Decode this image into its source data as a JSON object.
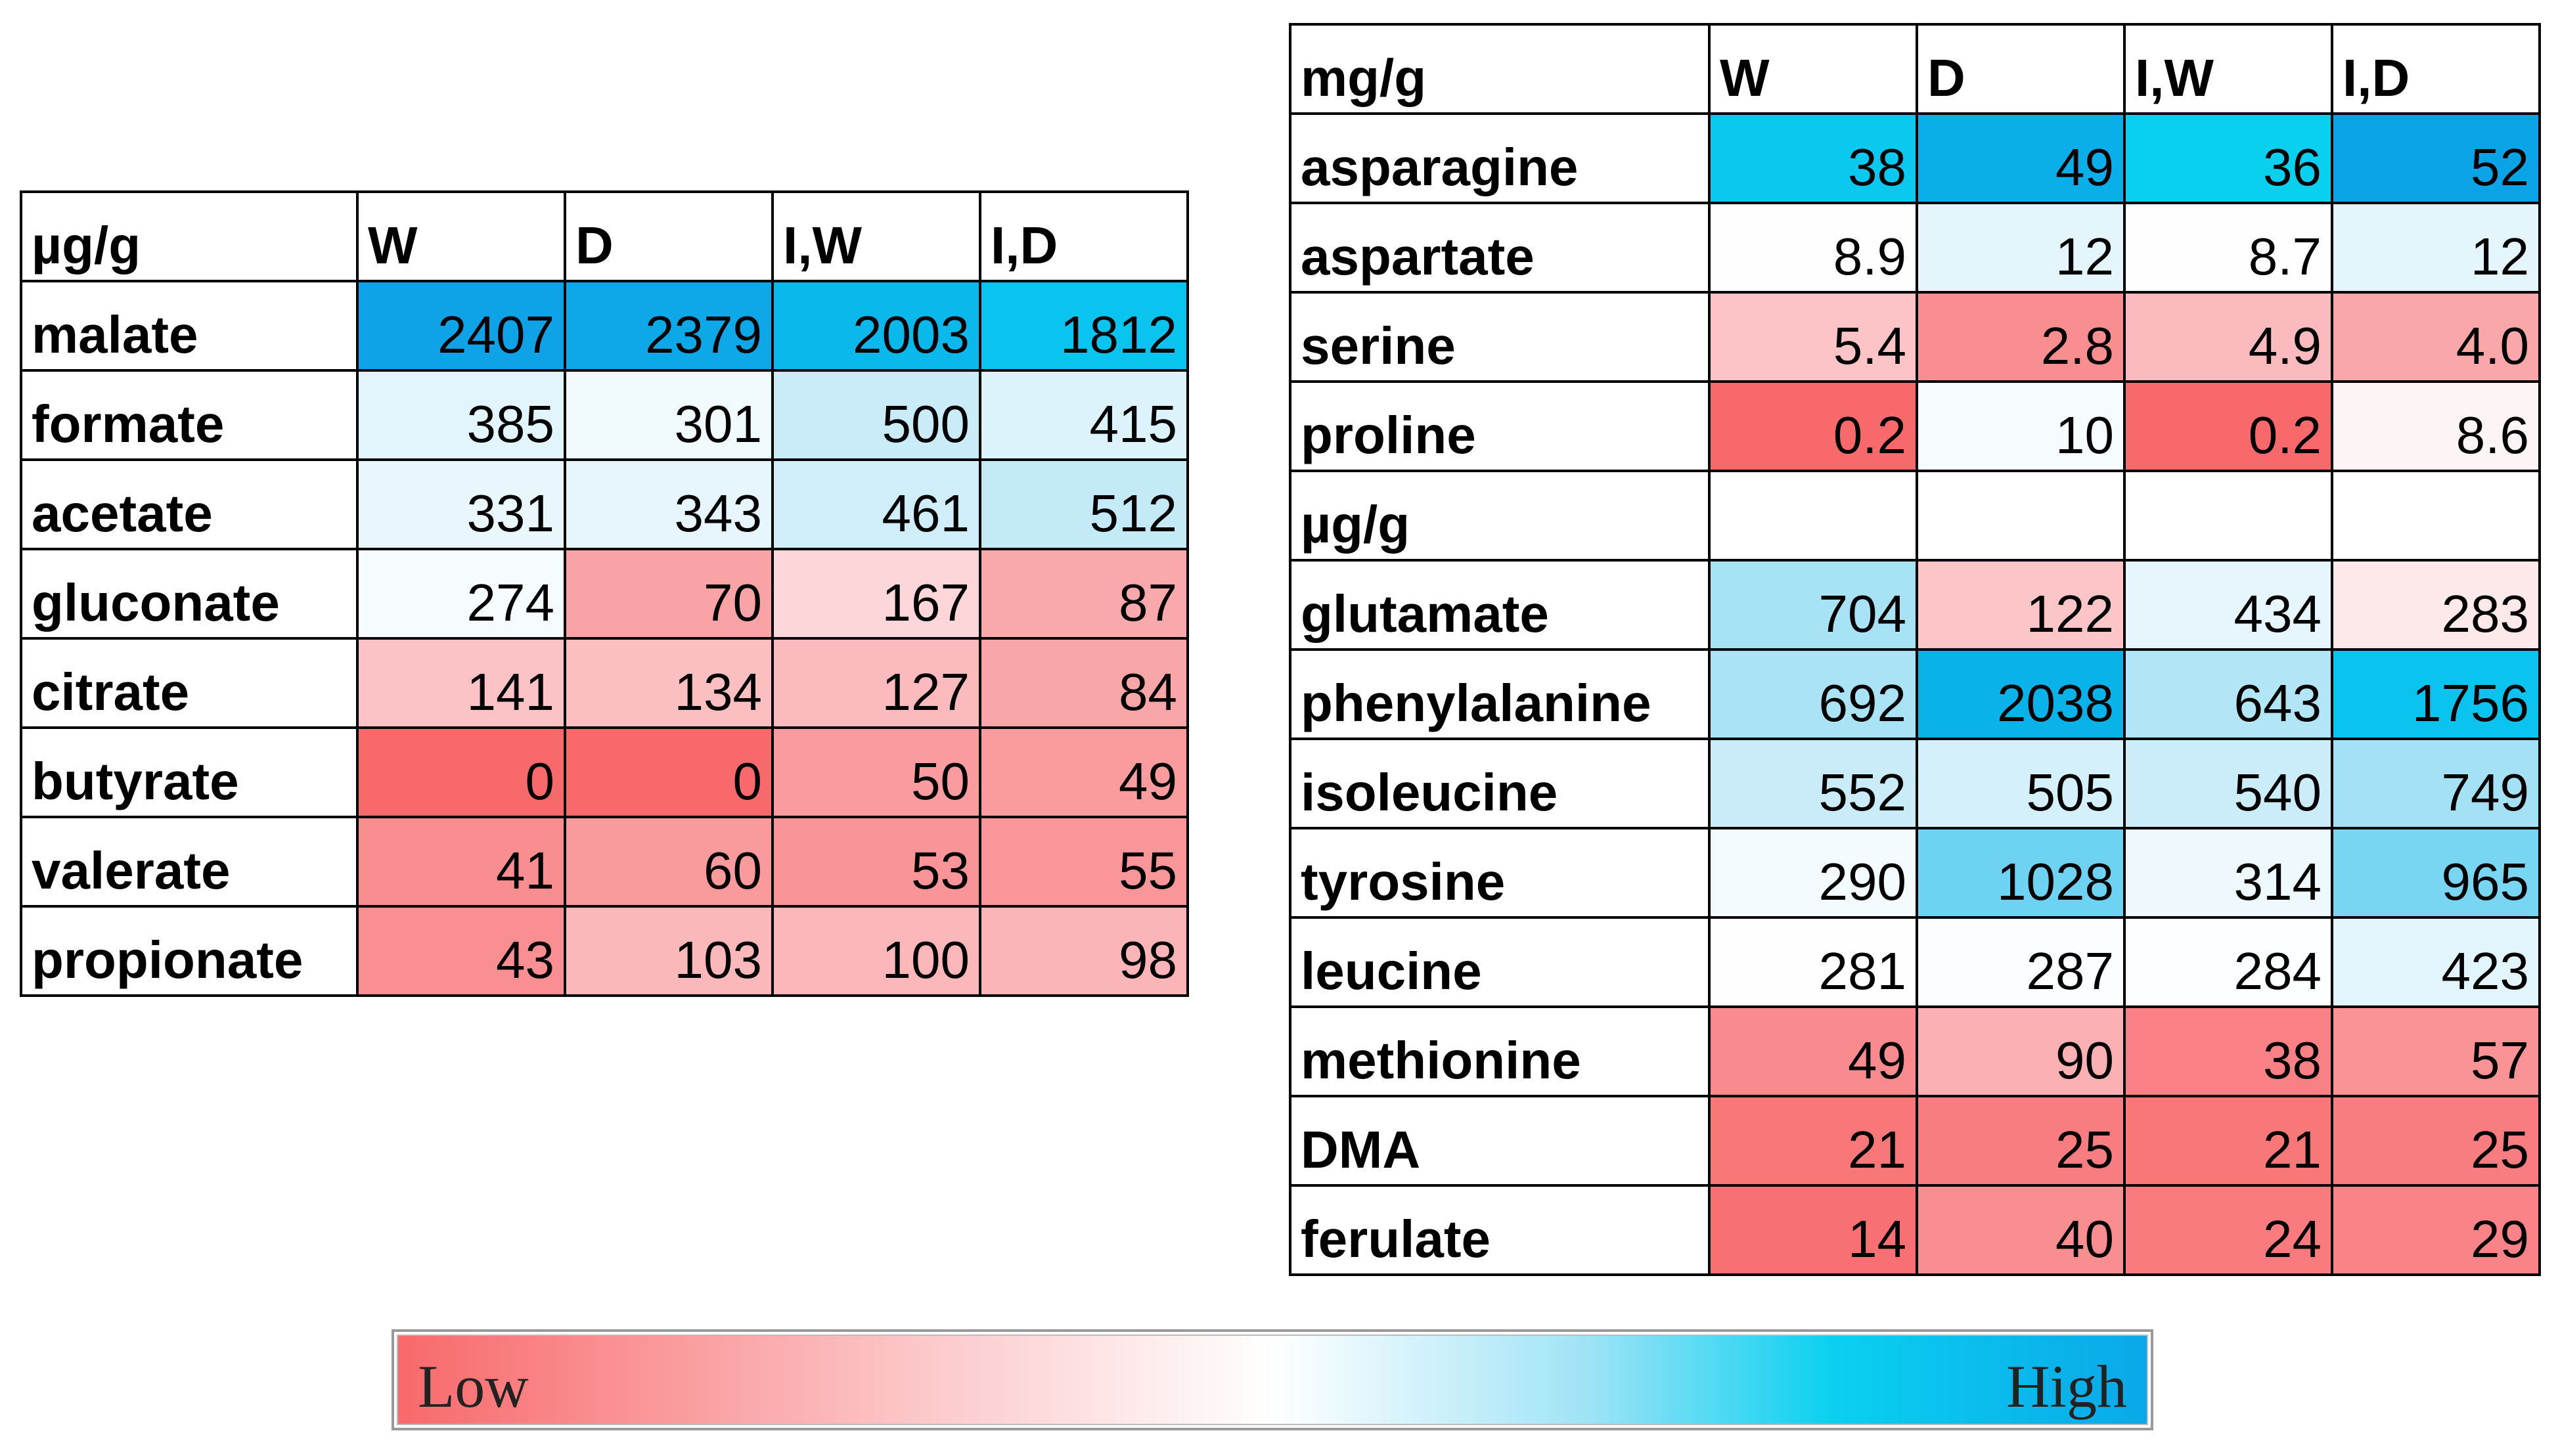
{
  "left_table": {
    "header": [
      "µg/g",
      "W",
      "D",
      "I,W",
      "I,D"
    ],
    "rows": [
      {
        "label": "malate",
        "values": [
          "2407",
          "2379",
          "2003",
          "1812"
        ],
        "colors": [
          "#0ea2e6",
          "#0ca8e8",
          "#0ab8ec",
          "#08c4ef"
        ]
      },
      {
        "label": "formate",
        "values": [
          "385",
          "301",
          "500",
          "415"
        ],
        "colors": [
          "#e3f5fc",
          "#f1fafd",
          "#c9ecf8",
          "#dcf3fb"
        ]
      },
      {
        "label": "acetate",
        "values": [
          "331",
          "343",
          "461",
          "512"
        ],
        "colors": [
          "#e9f7fd",
          "#e6f6fc",
          "#cfeefa",
          "#c4eaf8"
        ]
      },
      {
        "label": "gluconate",
        "values": [
          "274",
          "70",
          "167",
          "87"
        ],
        "colors": [
          "#f5fbfe",
          "#f9a3a6",
          "#fcd6d8",
          "#f9a9ab"
        ]
      },
      {
        "label": "citrate",
        "values": [
          "141",
          "134",
          "127",
          "84"
        ],
        "colors": [
          "#fbc3c5",
          "#fbbfc1",
          "#fbbabd",
          "#f9a6a8"
        ]
      },
      {
        "label": "butyrate",
        "values": [
          "0",
          "0",
          "50",
          "49"
        ],
        "colors": [
          "#f8696b",
          "#f8696b",
          "#fa9c9f",
          "#fa9b9e"
        ]
      },
      {
        "label": "valerate",
        "values": [
          "41",
          "60",
          "53",
          "55"
        ],
        "colors": [
          "#f98e91",
          "#f99a9d",
          "#f99598",
          "#f99699"
        ]
      },
      {
        "label": "propionate",
        "values": [
          "43",
          "103",
          "100",
          "98"
        ],
        "colors": [
          "#f98f92",
          "#fbb8bb",
          "#fbb7ba",
          "#fbb5b8"
        ]
      }
    ]
  },
  "right_table": {
    "header": [
      "mg/g",
      "W",
      "D",
      "I,W",
      "I,D"
    ],
    "rows": [
      {
        "label": "asparagine",
        "values": [
          "38",
          "49",
          "36",
          "52"
        ],
        "colors": [
          "#0ac8ee",
          "#0aaee8",
          "#0ad0f0",
          "#0aa3e6"
        ]
      },
      {
        "label": "aspartate",
        "values": [
          "8.9",
          "12",
          "8.7",
          "12"
        ],
        "colors": [
          "#fefefe",
          "#e4f6fc",
          "#fefefe",
          "#e4f6fc"
        ]
      },
      {
        "label": "serine",
        "values": [
          "5.4",
          "2.8",
          "4.9",
          "4.0"
        ],
        "colors": [
          "#fcc4c6",
          "#f98e91",
          "#fbbbbe",
          "#faa7aa"
        ]
      },
      {
        "label": "proline",
        "values": [
          "0.2",
          "10",
          "0.2",
          "8.6"
        ],
        "colors": [
          "#f8696b",
          "#f5fbfe",
          "#f8696b",
          "#fdf5f5"
        ]
      }
    ],
    "subheader": "µg/g",
    "rows2": [
      {
        "label": "glutamate",
        "values": [
          "704",
          "122",
          "434",
          "283"
        ],
        "colors": [
          "#a8e2f5",
          "#fcc5c7",
          "#e6f6fc",
          "#fde8ea"
        ]
      },
      {
        "label": "phenylalanine",
        "values": [
          "692",
          "2038",
          "643",
          "1756"
        ],
        "colors": [
          "#aae3f5",
          "#0ab2ea",
          "#b2e6f6",
          "#0ac3ee"
        ]
      },
      {
        "label": "isoleucine",
        "values": [
          "552",
          "505",
          "540",
          "749"
        ],
        "colors": [
          "#c9ecf8",
          "#d4f0fa",
          "#cbedf9",
          "#a4e1f5"
        ]
      },
      {
        "label": "tyrosine",
        "values": [
          "290",
          "1028",
          "314",
          "965"
        ],
        "colors": [
          "#f4fbfe",
          "#6ed3f2",
          "#eef9fd",
          "#78d6f3"
        ]
      },
      {
        "label": "leucine",
        "values": [
          "281",
          "287",
          "284",
          "423"
        ],
        "colors": [
          "#fefeff",
          "#fbfdfe",
          "#fdfeff",
          "#e3f5fc"
        ]
      },
      {
        "label": "methionine",
        "values": [
          "49",
          "90",
          "38",
          "57"
        ],
        "colors": [
          "#f98b8e",
          "#fbb0b3",
          "#f98084",
          "#f99396"
        ]
      },
      {
        "label": "DMA",
        "values": [
          "21",
          "25",
          "21",
          "25"
        ],
        "colors": [
          "#f87779",
          "#f87d80",
          "#f87779",
          "#f87d80"
        ]
      },
      {
        "label": "ferulate",
        "values": [
          "14",
          "40",
          "24",
          "29"
        ],
        "colors": [
          "#f87073",
          "#f98e91",
          "#f97b7e",
          "#f98386"
        ]
      }
    ]
  },
  "legend": {
    "low": "Low",
    "high": "High"
  }
}
